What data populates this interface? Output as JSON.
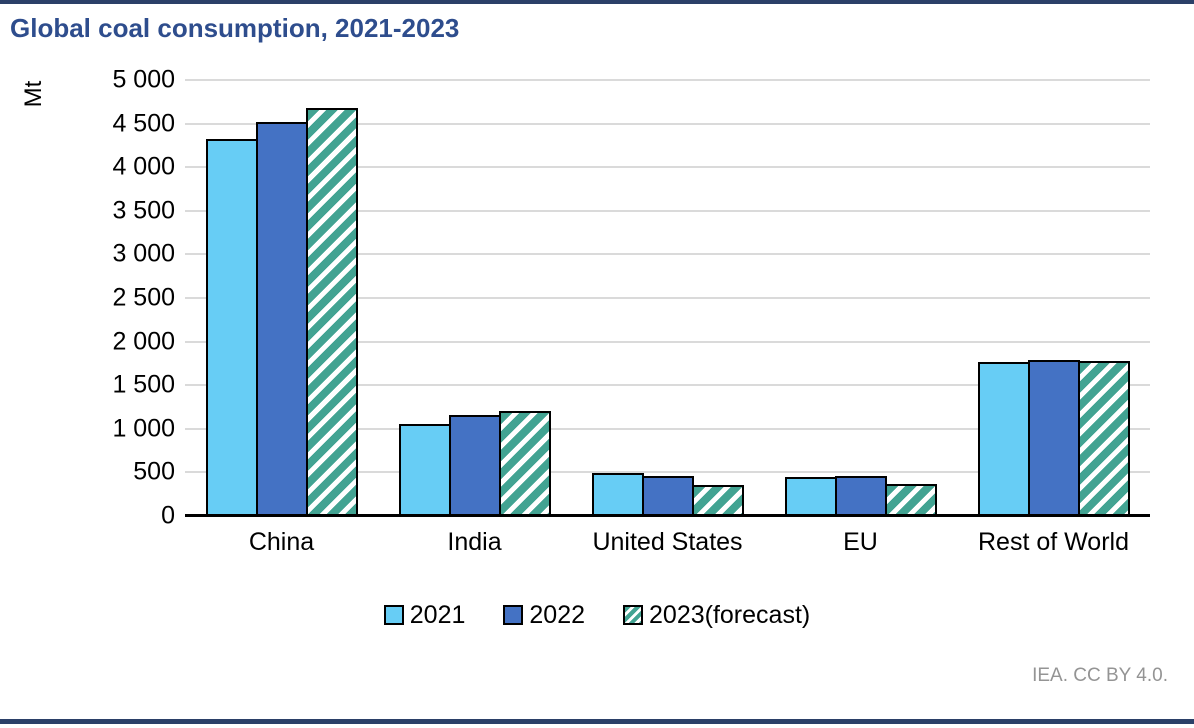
{
  "page": {
    "border_color": "#2B4068",
    "footer_credit": "IEA. CC BY 4.0."
  },
  "chart_data": {
    "type": "bar",
    "title": "Global coal consumption, 2021-2023",
    "title_color": "#2E4D8D",
    "ylabel": "Mt",
    "unit": "Mt",
    "ylim": [
      0,
      5000
    ],
    "ytick_step": 500,
    "grid": true,
    "gridline_color": "#DADADA",
    "legend_position": "bottom",
    "categories": [
      "China",
      "India",
      "United States",
      "EU",
      "Rest of World"
    ],
    "series": [
      {
        "name": "2021",
        "color": "#67CDF5",
        "pattern": "solid",
        "values": [
          4320,
          1060,
          490,
          445,
          1765
        ]
      },
      {
        "name": "2022",
        "color": "#4472C4",
        "pattern": "solid",
        "values": [
          4520,
          1160,
          460,
          455,
          1785
        ]
      },
      {
        "name": "2023(forecast)",
        "color": "#42A392",
        "pattern": "diagonal-hatch",
        "values": [
          4680,
          1210,
          350,
          370,
          1775
        ]
      }
    ]
  }
}
